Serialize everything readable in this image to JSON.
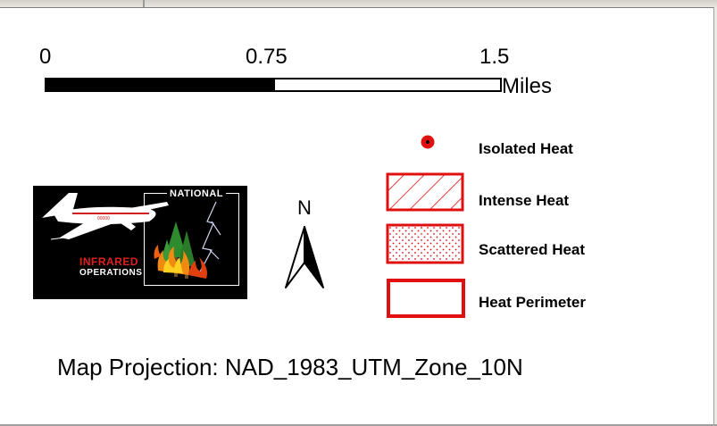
{
  "scale_bar": {
    "ticks": [
      "0",
      "0.75",
      "1.5"
    ],
    "unit": "Miles"
  },
  "logo": {
    "line1": "NATIONAL",
    "line2": "INFRARED",
    "line3": "OPERATIONS"
  },
  "north_arrow": {
    "label": "N"
  },
  "legend": {
    "items": [
      {
        "label": "Isolated Heat",
        "symbol": "red-dot"
      },
      {
        "label": "Intense Heat",
        "symbol": "red-hatched-box"
      },
      {
        "label": "Scattered Heat",
        "symbol": "red-stippled-box"
      },
      {
        "label": "Heat Perimeter",
        "symbol": "red-outline-box"
      }
    ]
  },
  "projection": "Map Projection: NAD_1983_UTM_Zone_10N",
  "colors": {
    "heat_red": "#e01010",
    "logo_bg": "#000000",
    "text": "#000000"
  }
}
